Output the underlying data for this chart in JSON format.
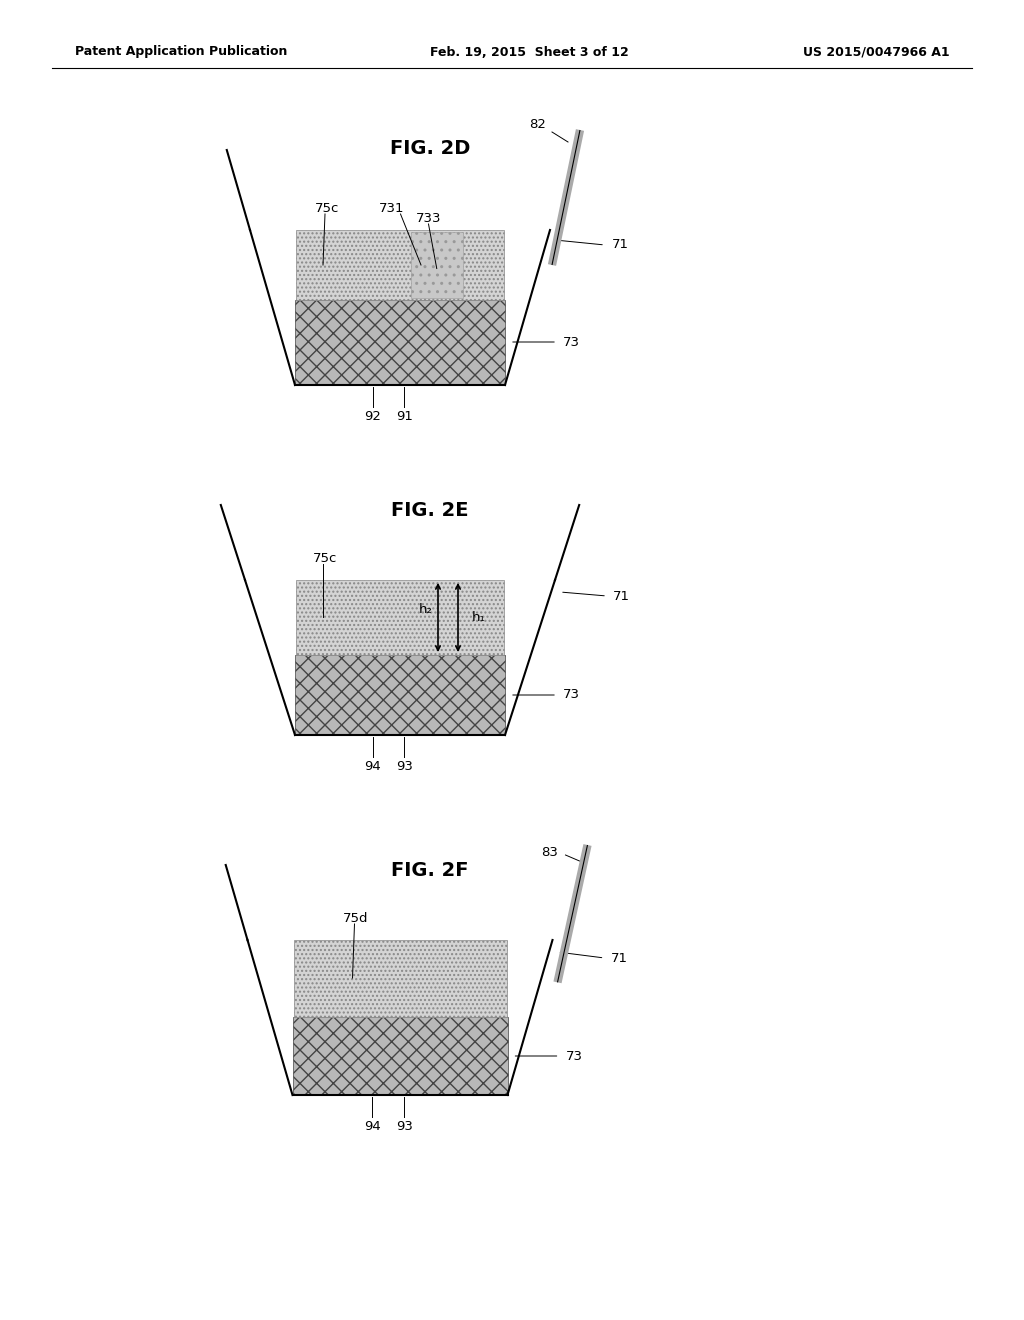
{
  "bg_color": "#ffffff",
  "header_left": "Patent Application Publication",
  "header_mid": "Feb. 19, 2015  Sheet 3 of 12",
  "header_right": "US 2015/0047966 A1",
  "fig2d_title": "FIG. 2D",
  "fig2e_title": "FIG. 2E",
  "fig2f_title": "FIG. 2F",
  "crosshatch_face": "#b8b8b8",
  "crosshatch_edge": "#444444",
  "light_face": "#d4d4d4",
  "light_edge": "#888888",
  "disturbed_face": "#c4c4c4"
}
